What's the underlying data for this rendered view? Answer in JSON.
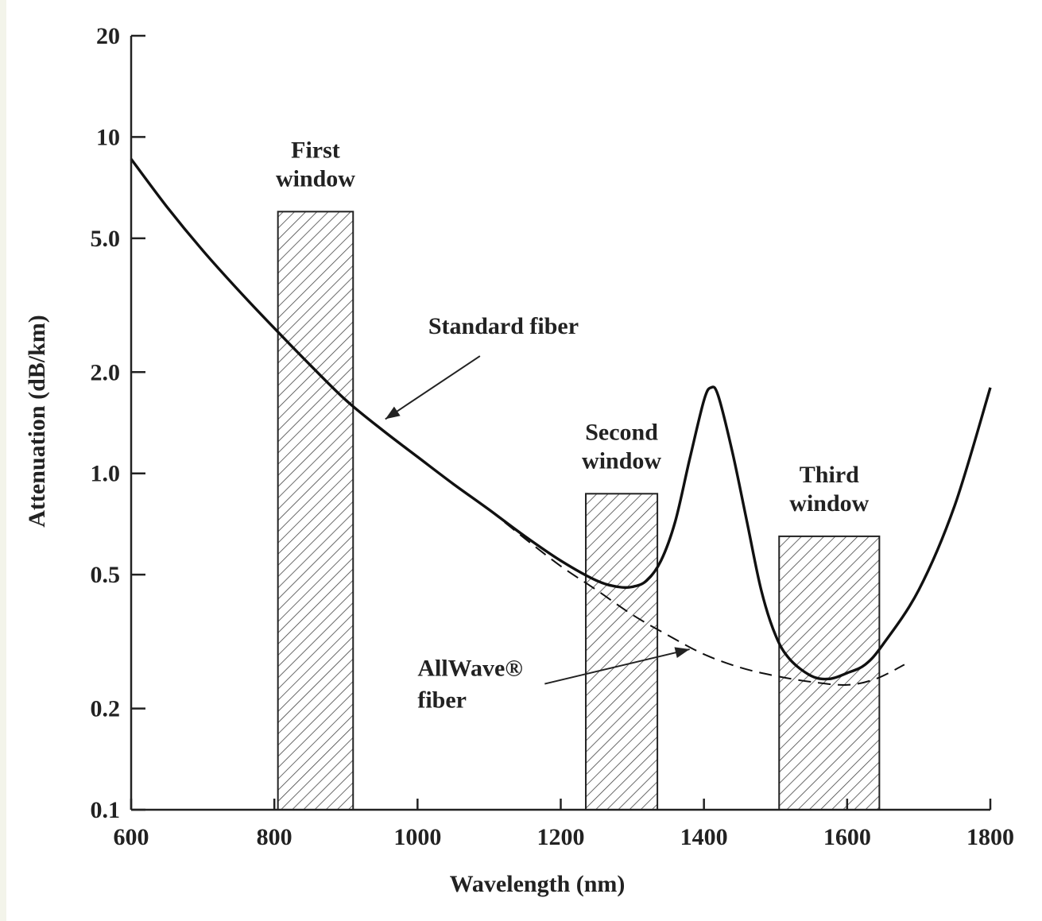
{
  "chart_data": {
    "type": "line",
    "title": "",
    "xlabel": "Wavelength (nm)",
    "ylabel": "Attenuation (dB/km)",
    "xlim": [
      600,
      1800
    ],
    "ylim": [
      0.1,
      20
    ],
    "yscale": "log",
    "x_ticks": [
      {
        "value": 600,
        "label": "600"
      },
      {
        "value": 800,
        "label": "800"
      },
      {
        "value": 1000,
        "label": "1000"
      },
      {
        "value": 1200,
        "label": "1200"
      },
      {
        "value": 1400,
        "label": "1400"
      },
      {
        "value": 1600,
        "label": "1600"
      },
      {
        "value": 1800,
        "label": "1800"
      }
    ],
    "y_ticks": [
      {
        "value": 0.1,
        "label": "0.1"
      },
      {
        "value": 0.2,
        "label": "0.2"
      },
      {
        "value": 0.5,
        "label": "0.5"
      },
      {
        "value": 1.0,
        "label": "1.0"
      },
      {
        "value": 2.0,
        "label": "2.0"
      },
      {
        "value": 5.0,
        "label": "5.0"
      },
      {
        "value": 10,
        "label": "10"
      },
      {
        "value": 20,
        "label": "20"
      }
    ],
    "series": [
      {
        "name": "Standard fiber",
        "style": "solid",
        "points": [
          [
            600,
            8.6
          ],
          [
            650,
            6.2
          ],
          [
            700,
            4.6
          ],
          [
            750,
            3.5
          ],
          [
            800,
            2.7
          ],
          [
            850,
            2.1
          ],
          [
            900,
            1.65
          ],
          [
            950,
            1.35
          ],
          [
            1000,
            1.12
          ],
          [
            1050,
            0.93
          ],
          [
            1100,
            0.78
          ],
          [
            1150,
            0.65
          ],
          [
            1200,
            0.55
          ],
          [
            1250,
            0.48
          ],
          [
            1280,
            0.46
          ],
          [
            1300,
            0.46
          ],
          [
            1320,
            0.48
          ],
          [
            1340,
            0.55
          ],
          [
            1360,
            0.72
          ],
          [
            1380,
            1.1
          ],
          [
            1400,
            1.65
          ],
          [
            1410,
            1.8
          ],
          [
            1420,
            1.7
          ],
          [
            1440,
            1.15
          ],
          [
            1460,
            0.72
          ],
          [
            1480,
            0.45
          ],
          [
            1500,
            0.33
          ],
          [
            1520,
            0.28
          ],
          [
            1550,
            0.25
          ],
          [
            1575,
            0.245
          ],
          [
            1600,
            0.255
          ],
          [
            1625,
            0.27
          ],
          [
            1650,
            0.31
          ],
          [
            1700,
            0.45
          ],
          [
            1750,
            0.8
          ],
          [
            1800,
            1.8
          ]
        ]
      },
      {
        "name": "AllWave® fiber",
        "style": "dashed",
        "points": [
          [
            1100,
            0.78
          ],
          [
            1150,
            0.64
          ],
          [
            1200,
            0.53
          ],
          [
            1250,
            0.45
          ],
          [
            1300,
            0.38
          ],
          [
            1350,
            0.33
          ],
          [
            1400,
            0.29
          ],
          [
            1450,
            0.265
          ],
          [
            1500,
            0.25
          ],
          [
            1550,
            0.24
          ],
          [
            1600,
            0.235
          ],
          [
            1640,
            0.245
          ],
          [
            1680,
            0.27
          ]
        ]
      }
    ],
    "windows": [
      {
        "label_lines": [
          "First",
          "window"
        ],
        "x_start": 805,
        "x_end": 910,
        "top": 6.0
      },
      {
        "label_lines": [
          "Second",
          "window"
        ],
        "x_start": 1235,
        "x_end": 1335,
        "top": 0.87
      },
      {
        "label_lines": [
          "Third",
          "window"
        ],
        "x_start": 1505,
        "x_end": 1645,
        "top": 0.65
      }
    ],
    "annotations": [
      {
        "text_lines": [
          "Standard fiber"
        ],
        "text_x": 1015,
        "text_y": 2.6,
        "arrow_to": [
          955,
          1.45
        ]
      },
      {
        "text_lines": [
          "AllWave®",
          "fiber"
        ],
        "text_x": 1000,
        "text_y": 0.25,
        "arrow_to": [
          1380,
          0.3
        ]
      }
    ],
    "grid": false,
    "legend": "none"
  }
}
